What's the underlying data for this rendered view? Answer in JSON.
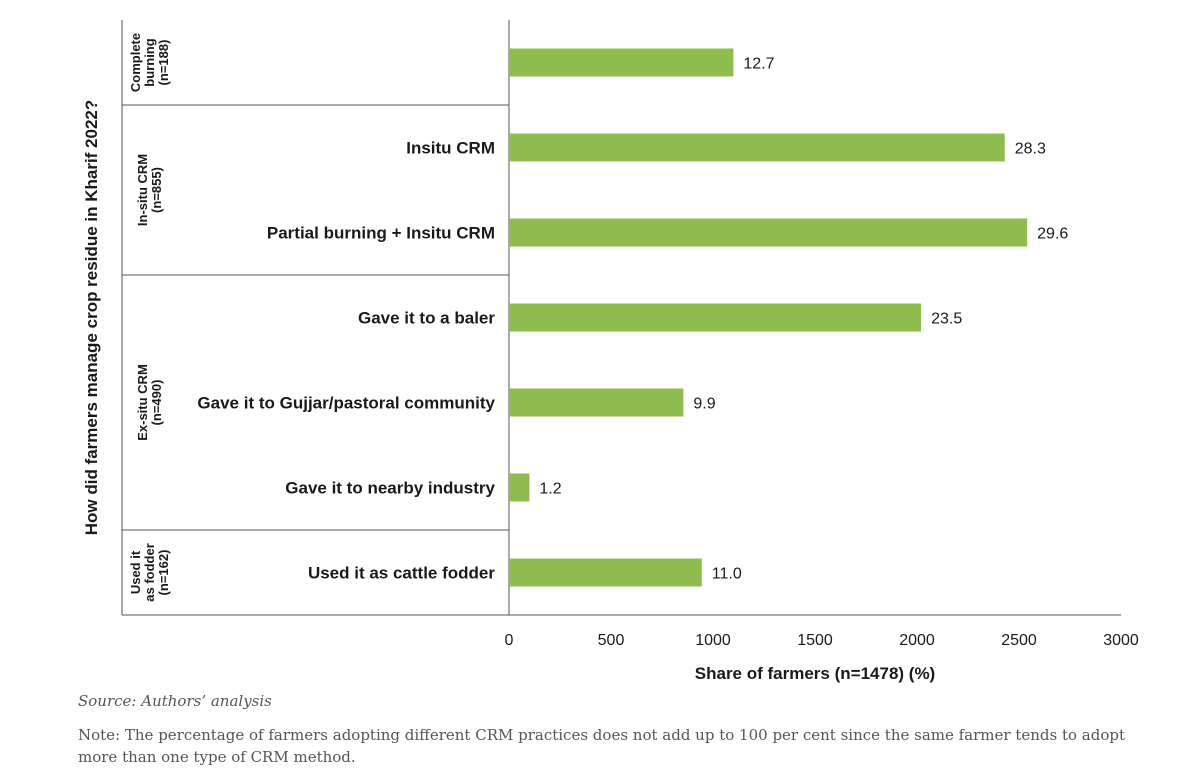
{
  "chart_data": {
    "type": "bar",
    "orientation": "horizontal",
    "ylabel": "How did farmers manage crop residue in Kharif 2022?",
    "xlabel": "Share of farmers (n=1478) (%)",
    "xlim": [
      0,
      3000
    ],
    "xticks": [
      "0",
      "500",
      "1000",
      "1500",
      "2000",
      "2500",
      "3000"
    ],
    "bar_color": "#8fbc4f",
    "grid": false,
    "groups": [
      {
        "label": [
          "Complete",
          "burning",
          "(n=188)"
        ],
        "rows": 1
      },
      {
        "label": [
          "In-situ CRM",
          "(n=855)"
        ],
        "rows": 2
      },
      {
        "label": [
          "Ex-situ CRM",
          "(n=490)"
        ],
        "rows": 3
      },
      {
        "label": [
          "Used it",
          "as fodder",
          "(n=162)"
        ],
        "rows": 1
      }
    ],
    "categories": [
      "",
      "Insitu CRM",
      "Partial burning +  Insitu CRM",
      "Gave it to a baler",
      "Gave it to Gujjar/pastoral community",
      "Gave it to nearby industry",
      "Used it as cattle fodder"
    ],
    "bar_lengths": [
      1100,
      2430,
      2540,
      2020,
      855,
      100,
      945
    ],
    "value_labels": [
      "12.7",
      "28.3",
      "29.6",
      "23.5",
      "9.9",
      "1.2",
      "11.0"
    ]
  },
  "source": "Source: Authors’ analysis",
  "note": "Note: The percentage of farmers adopting different CRM practices does not add up to 100 per cent since the same farmer tends to adopt more than one type of CRM method."
}
